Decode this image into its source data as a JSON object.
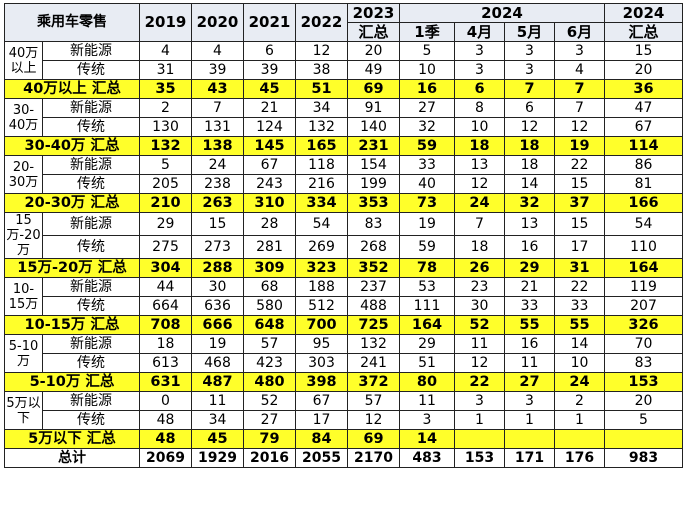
{
  "header": {
    "title": "乘用车零售",
    "years": [
      "2019",
      "2020",
      "2021",
      "2022"
    ],
    "col_2023_top": "2023",
    "col_2023_bottom": "汇总",
    "col_2024": "2024",
    "months": [
      "1季",
      "4月",
      "5月",
      "6月"
    ],
    "col_2024sum_top": "2024",
    "col_2024sum_bottom": "汇总"
  },
  "groups": [
    {
      "segment": "40万以上",
      "rows": [
        {
          "type": "新能源",
          "values": [
            "4",
            "4",
            "6",
            "12",
            "20",
            "5",
            "3",
            "3",
            "3",
            "15"
          ]
        },
        {
          "type": "传统",
          "values": [
            "31",
            "39",
            "39",
            "38",
            "49",
            "10",
            "3",
            "3",
            "4",
            "20"
          ]
        }
      ],
      "summary": {
        "label": "40万以上 汇总",
        "values": [
          "35",
          "43",
          "45",
          "51",
          "69",
          "16",
          "6",
          "7",
          "7",
          "36"
        ]
      }
    },
    {
      "segment": "30-40万",
      "rows": [
        {
          "type": "新能源",
          "values": [
            "2",
            "7",
            "21",
            "34",
            "91",
            "27",
            "8",
            "6",
            "7",
            "47"
          ]
        },
        {
          "type": "传统",
          "values": [
            "130",
            "131",
            "124",
            "132",
            "140",
            "32",
            "10",
            "12",
            "12",
            "67"
          ]
        }
      ],
      "summary": {
        "label": "30-40万 汇总",
        "values": [
          "132",
          "138",
          "145",
          "165",
          "231",
          "59",
          "18",
          "18",
          "19",
          "114"
        ]
      }
    },
    {
      "segment": "20-30万",
      "rows": [
        {
          "type": "新能源",
          "values": [
            "5",
            "24",
            "67",
            "118",
            "154",
            "33",
            "13",
            "18",
            "22",
            "86"
          ]
        },
        {
          "type": "传统",
          "values": [
            "205",
            "238",
            "243",
            "216",
            "199",
            "40",
            "12",
            "14",
            "15",
            "81"
          ]
        }
      ],
      "summary": {
        "label": "20-30万 汇总",
        "values": [
          "210",
          "263",
          "310",
          "334",
          "353",
          "73",
          "24",
          "32",
          "37",
          "166"
        ]
      }
    },
    {
      "segment": "15万-20万",
      "rows": [
        {
          "type": "新能源",
          "values": [
            "29",
            "15",
            "28",
            "54",
            "83",
            "19",
            "7",
            "13",
            "15",
            "54"
          ]
        },
        {
          "type": "传统",
          "values": [
            "275",
            "273",
            "281",
            "269",
            "268",
            "59",
            "18",
            "16",
            "17",
            "110"
          ]
        }
      ],
      "summary": {
        "label": "15万-20万 汇总",
        "values": [
          "304",
          "288",
          "309",
          "323",
          "352",
          "78",
          "26",
          "29",
          "31",
          "164"
        ]
      }
    },
    {
      "segment": "10-15万",
      "rows": [
        {
          "type": "新能源",
          "values": [
            "44",
            "30",
            "68",
            "188",
            "237",
            "53",
            "23",
            "21",
            "22",
            "119"
          ]
        },
        {
          "type": "传统",
          "values": [
            "664",
            "636",
            "580",
            "512",
            "488",
            "111",
            "30",
            "33",
            "33",
            "207"
          ]
        }
      ],
      "summary": {
        "label": "10-15万 汇总",
        "values": [
          "708",
          "666",
          "648",
          "700",
          "725",
          "164",
          "52",
          "55",
          "55",
          "326"
        ]
      }
    },
    {
      "segment": "5-10万",
      "rows": [
        {
          "type": "新能源",
          "values": [
            "18",
            "19",
            "57",
            "95",
            "132",
            "29",
            "11",
            "16",
            "14",
            "70"
          ]
        },
        {
          "type": "传统",
          "values": [
            "613",
            "468",
            "423",
            "303",
            "241",
            "51",
            "12",
            "11",
            "10",
            "83"
          ]
        }
      ],
      "summary": {
        "label": "5-10万 汇总",
        "values": [
          "631",
          "487",
          "480",
          "398",
          "372",
          "80",
          "22",
          "27",
          "24",
          "153"
        ]
      }
    },
    {
      "segment": "5万以下",
      "rows": [
        {
          "type": "新能源",
          "values": [
            "0",
            "11",
            "52",
            "67",
            "57",
            "11",
            "3",
            "3",
            "2",
            "20"
          ]
        },
        {
          "type": "传统",
          "values": [
            "48",
            "34",
            "27",
            "17",
            "12",
            "3",
            "1",
            "1",
            "1",
            "5"
          ]
        }
      ],
      "summary": {
        "label": "5万以下 汇总",
        "values": [
          "48",
          "45",
          "79",
          "84",
          "69",
          "14",
          "",
          "",
          "",
          ""
        ]
      }
    }
  ],
  "total": {
    "label": "总计",
    "values": [
      "2069",
      "1929",
      "2016",
      "2055",
      "2170",
      "483",
      "153",
      "171",
      "176",
      "983"
    ]
  },
  "colors": {
    "highlight": "#ffff2a",
    "border": "#222222"
  }
}
